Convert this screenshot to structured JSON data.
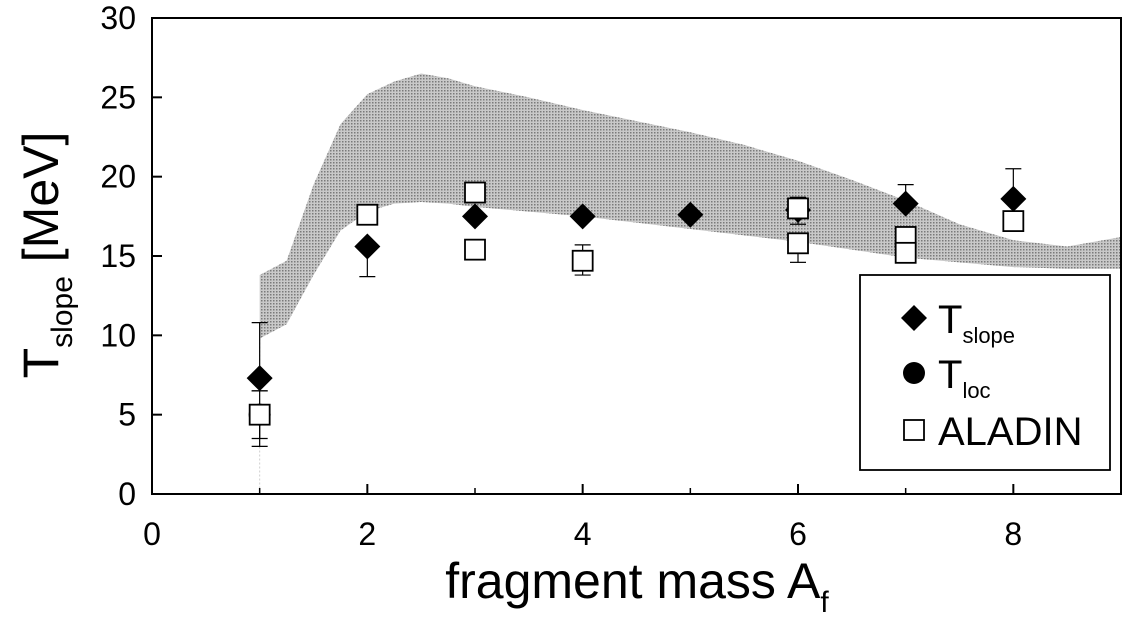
{
  "chart_data": {
    "type": "scatter",
    "xlabel": {
      "main": "fragment mass A",
      "sub": "f"
    },
    "ylabel": {
      "main": "T",
      "sub": "slope",
      "unit": "[MeV]"
    },
    "xlim": [
      0,
      9
    ],
    "ylim": [
      0,
      30
    ],
    "x_ticks": [
      0,
      2,
      4,
      6,
      8
    ],
    "y_ticks": [
      0,
      5,
      10,
      15,
      20,
      25,
      30
    ],
    "grid": false,
    "legend_position": "bottom-right",
    "band": {
      "fill": "#b5b5b5",
      "upper": [
        [
          1.0,
          13.8
        ],
        [
          1.25,
          14.7
        ],
        [
          1.5,
          19.5
        ],
        [
          1.75,
          23.3
        ],
        [
          2.0,
          25.2
        ],
        [
          2.25,
          26.0
        ],
        [
          2.5,
          26.5
        ],
        [
          2.75,
          26.2
        ],
        [
          3.0,
          25.7
        ],
        [
          3.5,
          25.0
        ],
        [
          4.0,
          24.2
        ],
        [
          4.5,
          23.5
        ],
        [
          5.0,
          22.8
        ],
        [
          5.5,
          22.0
        ],
        [
          6.0,
          21.0
        ],
        [
          6.5,
          19.8
        ],
        [
          7.0,
          18.5
        ],
        [
          7.5,
          17.0
        ],
        [
          8.0,
          16.0
        ],
        [
          8.5,
          15.6
        ],
        [
          9.0,
          16.2
        ]
      ],
      "lower": [
        [
          1.0,
          9.8
        ],
        [
          1.25,
          10.7
        ],
        [
          1.5,
          13.8
        ],
        [
          1.75,
          16.6
        ],
        [
          2.0,
          17.8
        ],
        [
          2.25,
          18.3
        ],
        [
          2.5,
          18.4
        ],
        [
          2.75,
          18.3
        ],
        [
          3.0,
          18.1
        ],
        [
          3.5,
          17.8
        ],
        [
          4.0,
          17.5
        ],
        [
          4.5,
          17.1
        ],
        [
          5.0,
          16.7
        ],
        [
          5.5,
          16.3
        ],
        [
          6.0,
          15.9
        ],
        [
          6.5,
          15.4
        ],
        [
          7.0,
          14.9
        ],
        [
          7.5,
          14.6
        ],
        [
          8.0,
          14.3
        ],
        [
          8.5,
          14.2
        ],
        [
          9.0,
          14.2
        ]
      ]
    },
    "series": [
      {
        "name": {
          "main": "T",
          "sub": "slope"
        },
        "marker": "diamond-filled",
        "points": [
          {
            "x": 1,
            "y": 7.3,
            "err": [
              6.5,
              10.8
            ]
          },
          {
            "x": 2,
            "y": 15.6,
            "err": [
              13.7,
              15.6
            ]
          },
          {
            "x": 3,
            "y": 17.5
          },
          {
            "x": 4,
            "y": 17.5
          },
          {
            "x": 5,
            "y": 17.6
          },
          {
            "x": 6,
            "y": 17.9
          },
          {
            "x": 7,
            "y": 18.3,
            "err": [
              18.3,
              19.5
            ]
          },
          {
            "x": 8,
            "y": 18.6,
            "err": [
              18.6,
              20.5
            ]
          }
        ]
      },
      {
        "name": {
          "main": "T",
          "sub": "loc"
        },
        "marker": "circle-filled",
        "points": [
          {
            "x": 1,
            "y": 5.0,
            "err": [
              3.0,
              5.0
            ]
          }
        ]
      },
      {
        "name": {
          "main": "ALADIN",
          "sub": ""
        },
        "marker": "square-open",
        "points": [
          {
            "x": 1,
            "y": 5.0,
            "err": [
              3.5,
              6.5
            ]
          },
          {
            "x": 2,
            "y": 17.6
          },
          {
            "x": 3,
            "y": 19.0
          },
          {
            "x": 3,
            "y": 15.4
          },
          {
            "x": 4,
            "y": 14.7,
            "err": [
              13.8,
              15.7
            ]
          },
          {
            "x": 6,
            "y": 18.0,
            "err": [
              17.0,
              18.7
            ]
          },
          {
            "x": 6,
            "y": 15.8,
            "err": [
              14.6,
              15.8
            ]
          },
          {
            "x": 7,
            "y": 16.2
          },
          {
            "x": 7,
            "y": 15.2
          },
          {
            "x": 8,
            "y": 17.2
          }
        ]
      }
    ]
  }
}
